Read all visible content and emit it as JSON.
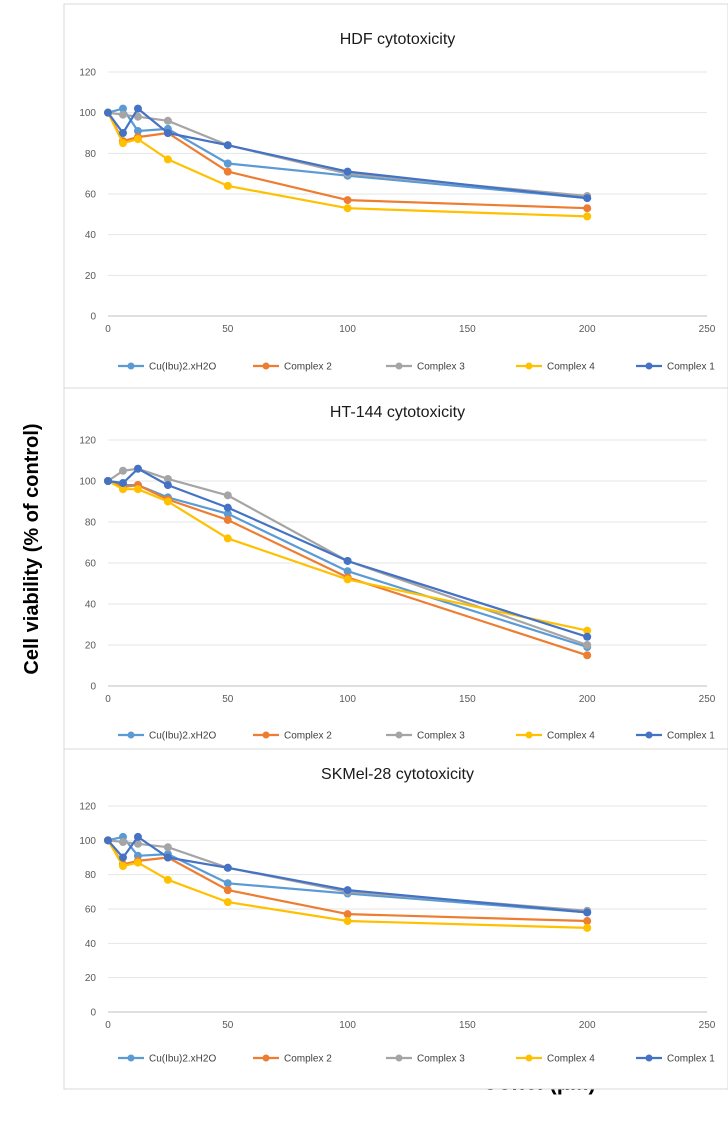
{
  "figure": {
    "ylabel": "Cell viability (% of control)",
    "xlabel": "Conc. (μM)"
  },
  "chart_data": [
    {
      "type": "line",
      "title": "HDF cytotoxicity",
      "xlim": [
        0,
        250
      ],
      "ylim": [
        0,
        120
      ],
      "x_ticks": [
        0,
        50,
        100,
        150,
        200,
        250
      ],
      "y_ticks": [
        0,
        20,
        40,
        60,
        80,
        100,
        120
      ],
      "grid": "horizontal",
      "legend": "bottom",
      "x": [
        0,
        6.25,
        12.5,
        25,
        50,
        100,
        200
      ],
      "series": [
        {
          "name": "Cu(Ibu)2.xH2O",
          "color": "#5B9BD5",
          "values": [
            100,
            102,
            91,
            92,
            75,
            69,
            58
          ]
        },
        {
          "name": "Complex 2",
          "color": "#ED7D31",
          "values": [
            100,
            86,
            88,
            90,
            71,
            57,
            53
          ]
        },
        {
          "name": "Complex 3",
          "color": "#A5A5A5",
          "values": [
            100,
            99,
            98,
            96,
            84,
            70,
            59
          ]
        },
        {
          "name": "Complex 4",
          "color": "#FFC000",
          "values": [
            100,
            85,
            87,
            77,
            64,
            53,
            49
          ]
        },
        {
          "name": "Complex 1",
          "color": "#4472C4",
          "values": [
            100,
            90,
            102,
            90,
            84,
            71,
            58
          ]
        }
      ]
    },
    {
      "type": "line",
      "title": "HT-144 cytotoxicity",
      "xlim": [
        0,
        250
      ],
      "ylim": [
        0,
        120
      ],
      "x_ticks": [
        0,
        50,
        100,
        150,
        200,
        250
      ],
      "y_ticks": [
        0,
        20,
        40,
        60,
        80,
        100,
        120
      ],
      "grid": "horizontal",
      "legend": "bottom",
      "x": [
        0,
        6.25,
        12.5,
        25,
        50,
        100,
        200
      ],
      "series": [
        {
          "name": "Cu(Ibu)2.xH2O",
          "color": "#5B9BD5",
          "values": [
            100,
            98,
            98,
            92,
            84,
            56,
            19
          ]
        },
        {
          "name": "Complex 2",
          "color": "#ED7D31",
          "values": [
            100,
            97,
            98,
            91,
            81,
            53,
            15
          ]
        },
        {
          "name": "Complex 3",
          "color": "#A5A5A5",
          "values": [
            100,
            105,
            106,
            101,
            93,
            61,
            20
          ]
        },
        {
          "name": "Complex 4",
          "color": "#FFC000",
          "values": [
            100,
            96,
            96,
            90,
            72,
            52,
            27
          ]
        },
        {
          "name": "Complex 1",
          "color": "#4472C4",
          "values": [
            100,
            99,
            106,
            98,
            87,
            61,
            24
          ]
        }
      ]
    },
    {
      "type": "line",
      "title": "SKMel-28 cytotoxicity",
      "xlim": [
        0,
        250
      ],
      "ylim": [
        0,
        120
      ],
      "x_ticks": [
        0,
        50,
        100,
        150,
        200,
        250
      ],
      "y_ticks": [
        0,
        20,
        40,
        60,
        80,
        100,
        120
      ],
      "grid": "horizontal",
      "legend": "bottom",
      "x": [
        0,
        6.25,
        12.5,
        25,
        50,
        100,
        200
      ],
      "series": [
        {
          "name": "Cu(Ibu)2.xH2O",
          "color": "#5B9BD5",
          "values": [
            100,
            102,
            91,
            92,
            75,
            69,
            58
          ]
        },
        {
          "name": "Complex 2",
          "color": "#ED7D31",
          "values": [
            100,
            86,
            88,
            90,
            71,
            57,
            53
          ]
        },
        {
          "name": "Complex 3",
          "color": "#A5A5A5",
          "values": [
            100,
            99,
            98,
            96,
            84,
            70,
            59
          ]
        },
        {
          "name": "Complex 4",
          "color": "#FFC000",
          "values": [
            100,
            85,
            87,
            77,
            64,
            53,
            49
          ]
        },
        {
          "name": "Complex 1",
          "color": "#4472C4",
          "values": [
            100,
            90,
            102,
            90,
            84,
            71,
            58
          ]
        }
      ]
    }
  ]
}
